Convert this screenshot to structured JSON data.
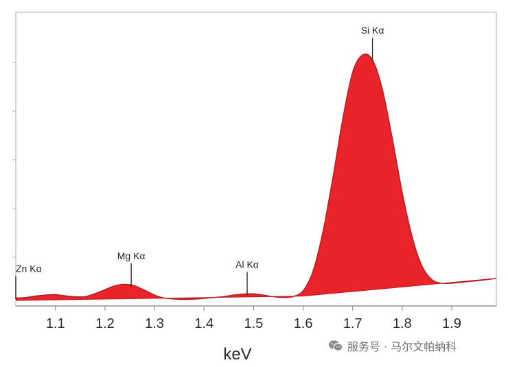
{
  "chart_data": {
    "type": "area",
    "title": "",
    "xlabel": "keV",
    "ylabel": "",
    "xlim": [
      1.02,
      1.99
    ],
    "ylim": [
      0,
      1
    ],
    "x_ticks": [
      1.1,
      1.2,
      1.3,
      1.4,
      1.5,
      1.6,
      1.7,
      1.8,
      1.9
    ],
    "x_tick_labels": [
      "1.1",
      "1.2",
      "1.3",
      "1.4",
      "1.5",
      "1.6",
      "1.7",
      "1.8",
      "1.9"
    ],
    "y_tick_labels_shown": false,
    "grid": false,
    "legend": "none",
    "fill_color": "#e8232a",
    "outline_color": "#b31c20",
    "spectrum": {
      "x": [
        1.02,
        1.04,
        1.06,
        1.08,
        1.1,
        1.12,
        1.14,
        1.16,
        1.18,
        1.2,
        1.22,
        1.24,
        1.26,
        1.28,
        1.3,
        1.32,
        1.34,
        1.36,
        1.38,
        1.4,
        1.42,
        1.44,
        1.46,
        1.48,
        1.5,
        1.52,
        1.54,
        1.56,
        1.58,
        1.6,
        1.62,
        1.64,
        1.66,
        1.68,
        1.7,
        1.72,
        1.74,
        1.76,
        1.78,
        1.8,
        1.82,
        1.84,
        1.86,
        1.88,
        1.9,
        1.92,
        1.94,
        1.96,
        1.99
      ],
      "y": [
        0.01,
        0.012,
        0.018,
        0.022,
        0.024,
        0.019,
        0.015,
        0.016,
        0.028,
        0.044,
        0.06,
        0.066,
        0.06,
        0.042,
        0.022,
        0.01,
        0.006,
        0.004,
        0.005,
        0.008,
        0.012,
        0.016,
        0.022,
        0.026,
        0.027,
        0.022,
        0.015,
        0.012,
        0.016,
        0.04,
        0.12,
        0.28,
        0.5,
        0.74,
        0.93,
        1.0,
        0.98,
        0.86,
        0.66,
        0.44,
        0.26,
        0.14,
        0.085,
        0.07,
        0.07,
        0.074,
        0.078,
        0.082,
        0.09
      ]
    },
    "baseline": {
      "x": [
        1.02,
        1.6,
        1.99
      ],
      "y": [
        0.0,
        0.018,
        0.09
      ]
    },
    "peak_markers": [
      {
        "label": "Zn Kα",
        "x": 1.02
      },
      {
        "label": "Mg Kα",
        "x": 1.253
      },
      {
        "label": "Al Kα",
        "x": 1.487
      },
      {
        "label": "Si Kα",
        "x": 1.74
      }
    ]
  },
  "watermark": {
    "icon": "wechat-icon",
    "text": "服务号 · 马尔文帕纳科"
  }
}
